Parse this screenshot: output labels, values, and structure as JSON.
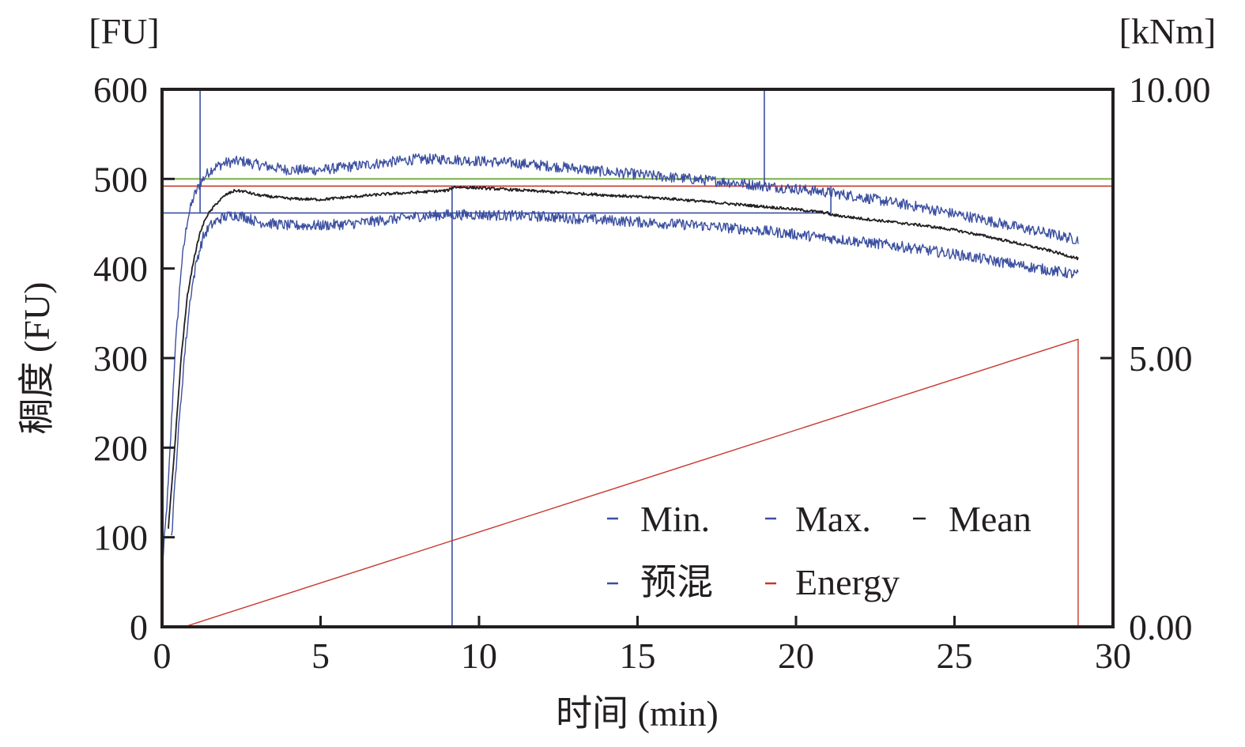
{
  "chart_data": {
    "type": "line",
    "title": "",
    "xlabel": "时间 (min)",
    "ylabel": "稠度 (FU)",
    "y_unit_label": "[FU]",
    "y2_unit_label": "[kNm]",
    "xlim": [
      0,
      30
    ],
    "ylim": [
      0,
      600
    ],
    "y2lim": [
      0,
      10
    ],
    "x_ticks": [
      0,
      5,
      10,
      15,
      20,
      25,
      30
    ],
    "x_tick_labels": [
      "0",
      "5",
      "10",
      "15",
      "20",
      "25",
      "30"
    ],
    "y_ticks": [
      0,
      100,
      200,
      300,
      400,
      500,
      600
    ],
    "y_tick_labels": [
      "0",
      "100",
      "200",
      "300",
      "400",
      "500",
      "600"
    ],
    "y2_ticks": [
      0,
      5,
      10
    ],
    "y2_tick_labels": [
      "0.00",
      "5.00",
      "10.00"
    ],
    "grid": false,
    "legend_position": "bottom-right",
    "legend": [
      {
        "label": "Min.",
        "color": "#3b4fa0"
      },
      {
        "label": "Max.",
        "color": "#3b4fa0"
      },
      {
        "label": "Mean",
        "color": "#231f20"
      },
      {
        "label": "预混",
        "color": "#3b4fa0"
      },
      {
        "label": "Energy",
        "color": "#c8372d"
      }
    ],
    "series": [
      {
        "name": "Max.",
        "color": "#3b4fa0",
        "noise": 6,
        "x": [
          0,
          0.2,
          0.4,
          0.6,
          0.8,
          1.0,
          1.2,
          1.4,
          1.6,
          2.0,
          2.5,
          3,
          4,
          5,
          6,
          7,
          8,
          9,
          10,
          11,
          12,
          13,
          14,
          15,
          16,
          17,
          18,
          19,
          20,
          21,
          22,
          23,
          24,
          25,
          26,
          27,
          28,
          28.9
        ],
        "y": [
          60,
          160,
          300,
          400,
          455,
          480,
          495,
          505,
          512,
          518,
          520,
          516,
          510,
          510,
          514,
          518,
          522,
          522,
          520,
          518,
          515,
          512,
          508,
          505,
          502,
          499,
          496,
          492,
          489,
          485,
          480,
          474,
          468,
          461,
          454,
          446,
          439,
          432
        ]
      },
      {
        "name": "Min.",
        "color": "#3b4fa0",
        "noise": 6,
        "x": [
          0.3,
          0.5,
          0.7,
          0.9,
          1.1,
          1.3,
          1.5,
          1.8,
          2.2,
          2.6,
          3,
          4,
          5,
          6,
          7,
          8,
          9,
          10,
          11,
          12,
          13,
          14,
          15,
          16,
          17,
          18,
          19,
          20,
          21,
          22,
          23,
          24,
          25,
          26,
          27,
          28,
          28.9
        ],
        "y": [
          100,
          210,
          300,
          370,
          410,
          435,
          447,
          455,
          460,
          458,
          452,
          448,
          448,
          450,
          454,
          458,
          460,
          460,
          459,
          458,
          456,
          454,
          452,
          450,
          448,
          445,
          442,
          438,
          434,
          430,
          426,
          421,
          416,
          410,
          404,
          398,
          393
        ]
      },
      {
        "name": "Mean",
        "color": "#231f20",
        "noise": 1.5,
        "x": [
          0.2,
          0.4,
          0.6,
          0.8,
          1.0,
          1.2,
          1.4,
          1.7,
          2.0,
          2.3,
          2.6,
          3,
          4,
          5,
          6,
          7,
          8,
          9,
          9.2,
          10,
          11,
          12,
          13,
          14,
          15,
          16,
          17,
          18,
          19,
          20,
          21,
          21.1,
          22,
          23,
          24,
          25,
          26,
          27,
          28,
          28.9
        ],
        "y": [
          110,
          200,
          300,
          370,
          410,
          440,
          458,
          472,
          482,
          487,
          486,
          482,
          478,
          477,
          480,
          483,
          485,
          487,
          491,
          490,
          488,
          486,
          484,
          482,
          480,
          478,
          475,
          472,
          469,
          466,
          462,
          460,
          456,
          452,
          448,
          443,
          436,
          428,
          420,
          411
        ]
      },
      {
        "name": "Energy",
        "color": "#c8372d",
        "axis": "right",
        "noise": 0,
        "x": [
          0.7,
          28.9,
          28.9
        ],
        "y": [
          0.0,
          5.35,
          0.0
        ]
      }
    ],
    "reference_lines": [
      {
        "name": "upper-limit",
        "orientation": "horizontal",
        "value": 500,
        "x_range": [
          0,
          30
        ],
        "color": "#7fb24e"
      },
      {
        "name": "consistency-peak",
        "orientation": "horizontal",
        "value": 492,
        "x_range": [
          0,
          30
        ],
        "color": "#c8372d"
      },
      {
        "name": "premix-level",
        "orientation": "horizontal",
        "value": 462,
        "x_range": [
          0,
          21.1
        ],
        "color": "#3b4fa0"
      },
      {
        "name": "arrival-time",
        "orientation": "vertical",
        "value": 1.2,
        "y_range": [
          462,
          600
        ],
        "color": "#3b4fa0"
      },
      {
        "name": "peak-time",
        "orientation": "vertical",
        "value": 9.15,
        "y_range": [
          0,
          492
        ],
        "color": "#3b4fa0"
      },
      {
        "name": "departure-time",
        "orientation": "vertical",
        "value": 19.0,
        "y_range": [
          492,
          600
        ],
        "color": "#3b4fa0"
      },
      {
        "name": "stability-end",
        "orientation": "vertical",
        "value": 21.1,
        "y_range": [
          462,
          492
        ],
        "color": "#3b4fa0"
      }
    ]
  }
}
